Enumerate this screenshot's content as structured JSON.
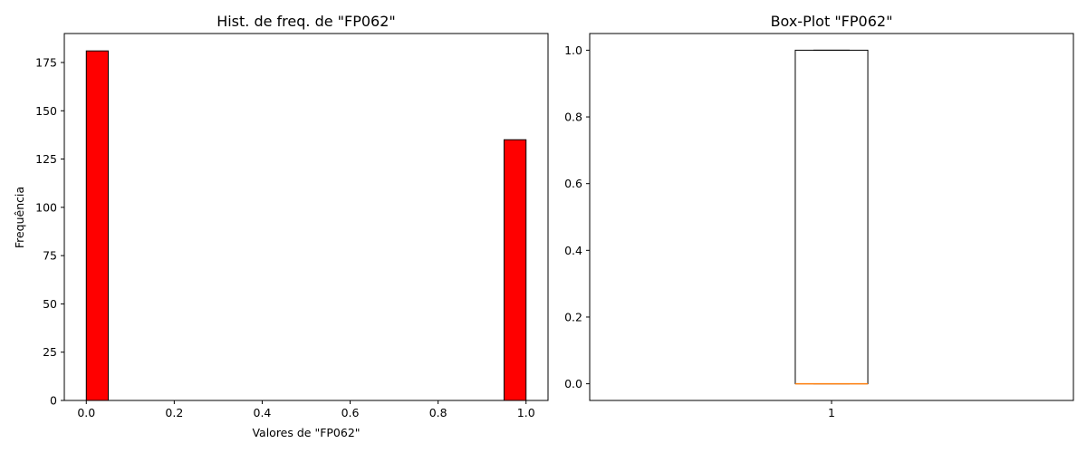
{
  "chart_data": [
    {
      "type": "bar",
      "subtype": "histogram",
      "title": "Hist. de freq. de \"FP062\"",
      "xlabel": "Valores de \"FP062\"",
      "ylabel": "Frequência",
      "xlim": [
        -0.05,
        1.05
      ],
      "ylim": [
        0,
        190
      ],
      "xticks": [
        0.0,
        0.2,
        0.4,
        0.6,
        0.8,
        1.0
      ],
      "xtick_labels": [
        "0.0",
        "0.2",
        "0.4",
        "0.6",
        "0.8",
        "1.0"
      ],
      "yticks": [
        0,
        25,
        50,
        75,
        100,
        125,
        150,
        175
      ],
      "ytick_labels": [
        "0",
        "25",
        "50",
        "75",
        "100",
        "125",
        "150",
        "175"
      ],
      "bins": [
        {
          "x0": 0.0,
          "x1": 0.05,
          "value": 181
        },
        {
          "x0": 0.05,
          "x1": 0.1,
          "value": 0
        },
        {
          "x0": 0.1,
          "x1": 0.15,
          "value": 0
        },
        {
          "x0": 0.15,
          "x1": 0.2,
          "value": 0
        },
        {
          "x0": 0.2,
          "x1": 0.25,
          "value": 0
        },
        {
          "x0": 0.25,
          "x1": 0.3,
          "value": 0
        },
        {
          "x0": 0.3,
          "x1": 0.35,
          "value": 0
        },
        {
          "x0": 0.35,
          "x1": 0.4,
          "value": 0
        },
        {
          "x0": 0.4,
          "x1": 0.45,
          "value": 0
        },
        {
          "x0": 0.45,
          "x1": 0.5,
          "value": 0
        },
        {
          "x0": 0.5,
          "x1": 0.55,
          "value": 0
        },
        {
          "x0": 0.55,
          "x1": 0.6,
          "value": 0
        },
        {
          "x0": 0.6,
          "x1": 0.65,
          "value": 0
        },
        {
          "x0": 0.65,
          "x1": 0.7,
          "value": 0
        },
        {
          "x0": 0.7,
          "x1": 0.75,
          "value": 0
        },
        {
          "x0": 0.75,
          "x1": 0.8,
          "value": 0
        },
        {
          "x0": 0.8,
          "x1": 0.85,
          "value": 0
        },
        {
          "x0": 0.85,
          "x1": 0.9,
          "value": 0
        },
        {
          "x0": 0.9,
          "x1": 0.95,
          "value": 0
        },
        {
          "x0": 0.95,
          "x1": 1.0,
          "value": 135
        }
      ],
      "bar_color": "#ff0000",
      "edge_color": "#000000",
      "grid": false
    },
    {
      "type": "boxplot",
      "title": "Box-Plot \"FP062\"",
      "xlabel": "",
      "ylabel": "",
      "xlim": [
        0.5,
        1.5
      ],
      "ylim": [
        -0.05,
        1.05
      ],
      "xticks": [
        1
      ],
      "xtick_labels": [
        "1"
      ],
      "yticks": [
        0.0,
        0.2,
        0.4,
        0.6,
        0.8,
        1.0
      ],
      "ytick_labels": [
        "0.0",
        "0.2",
        "0.4",
        "0.6",
        "0.8",
        "1.0"
      ],
      "boxes": [
        {
          "position": 1,
          "whislo": 0.0,
          "q1": 0.0,
          "median": 0.0,
          "q3": 1.0,
          "whishi": 1.0
        }
      ],
      "box_width": 0.15,
      "cap_width": 0.075,
      "median_color": "#ff7f0e",
      "grid": false
    }
  ]
}
